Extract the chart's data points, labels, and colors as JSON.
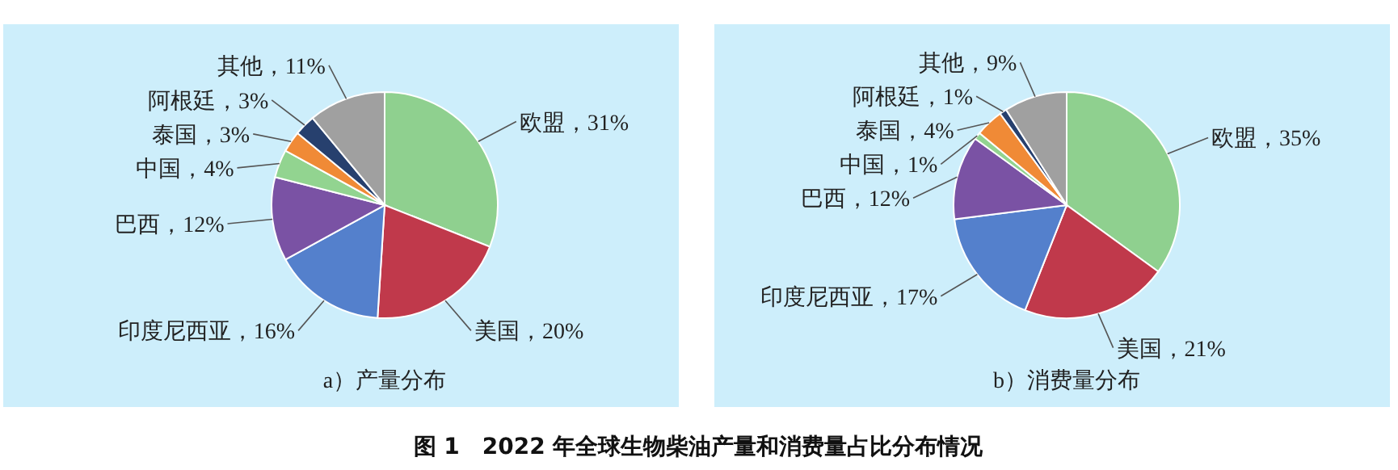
{
  "chart_data": [
    {
      "type": "pie",
      "title": "a）产量分布",
      "categories": [
        "欧盟",
        "美国",
        "印度尼西亚",
        "巴西",
        "中国",
        "泰国",
        "阿根廷",
        "其他"
      ],
      "values": [
        31,
        20,
        16,
        12,
        4,
        3,
        3,
        11
      ],
      "value_labels": [
        "31%",
        "20%",
        "16%",
        "12%",
        "4%",
        "3%",
        "3%",
        "11%"
      ],
      "colors": [
        "#8fd08f",
        "#c0394b",
        "#5480cc",
        "#7a52a4",
        "#92d490",
        "#f08a36",
        "#27406e",
        "#a0a0a0"
      ],
      "annotations": [
        "图 1　2022 年全球生物柴油产量和消费量占比分布情况"
      ]
    },
    {
      "type": "pie",
      "title": "b）消费量分布",
      "categories": [
        "欧盟",
        "美国",
        "印度尼西亚",
        "巴西",
        "中国",
        "泰国",
        "阿根廷",
        "其他"
      ],
      "values": [
        35,
        21,
        17,
        12,
        1,
        4,
        1,
        9
      ],
      "value_labels": [
        "35%",
        "21%",
        "17%",
        "12%",
        "1%",
        "4%",
        "1%",
        "9%"
      ],
      "colors": [
        "#8fd08f",
        "#c0394b",
        "#5480cc",
        "#7a52a4",
        "#92d490",
        "#f08a36",
        "#27406e",
        "#a0a0a0"
      ]
    }
  ]
}
